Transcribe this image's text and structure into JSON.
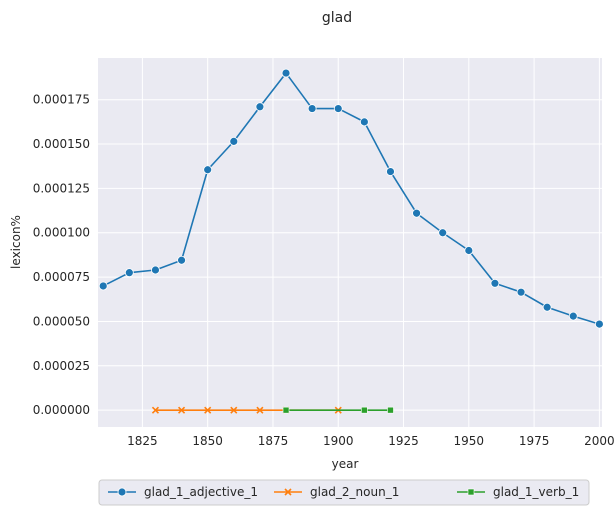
{
  "chart_data": {
    "type": "line",
    "title": "glad",
    "xlabel": "year",
    "ylabel": "lexicon%",
    "xlim": [
      1808,
      2001
    ],
    "ylim": [
      -9.5e-06,
      0.0001985
    ],
    "x_ticks": [
      1825,
      1850,
      1875,
      1900,
      1925,
      1950,
      1975,
      2000
    ],
    "x_tick_labels": [
      "1825",
      "1850",
      "1875",
      "1900",
      "1925",
      "1950",
      "1975",
      "2000"
    ],
    "y_ticks": [
      0,
      2.5e-05,
      5e-05,
      7.5e-05,
      0.0001,
      0.000125,
      0.00015,
      0.000175
    ],
    "y_tick_labels": [
      "0.000000",
      "0.000025",
      "0.000050",
      "0.000075",
      "0.000100",
      "0.000125",
      "0.000150",
      "0.000175"
    ],
    "grid": true,
    "legend_position": "bottom-center",
    "background_color": "#eaeaf2",
    "series": [
      {
        "name": "glad_1_adjective_1",
        "color": "#1f77b4",
        "marker": "circle",
        "x": [
          1810,
          1820,
          1830,
          1840,
          1850,
          1860,
          1870,
          1880,
          1890,
          1900,
          1910,
          1920,
          1930,
          1940,
          1950,
          1960,
          1970,
          1980,
          1990,
          2000
        ],
        "y": [
          7e-05,
          7.75e-05,
          7.9e-05,
          8.45e-05,
          0.0001355,
          0.0001515,
          0.000171,
          0.00019,
          0.00017,
          0.00017,
          0.0001625,
          0.0001345,
          0.000111,
          0.0001,
          9e-05,
          7.15e-05,
          6.65e-05,
          5.8e-05,
          5.3e-05,
          4.85e-05
        ]
      },
      {
        "name": "glad_2_noun_1",
        "color": "#ff7f0e",
        "marker": "x",
        "x": [
          1830,
          1840,
          1850,
          1860,
          1870,
          1880,
          1900
        ],
        "y": [
          0,
          0,
          0,
          0,
          0,
          0,
          0
        ]
      },
      {
        "name": "glad_1_verb_1",
        "color": "#2ca02c",
        "marker": "square",
        "x": [
          1880,
          1910,
          1920
        ],
        "y": [
          0,
          0,
          0
        ]
      }
    ]
  }
}
